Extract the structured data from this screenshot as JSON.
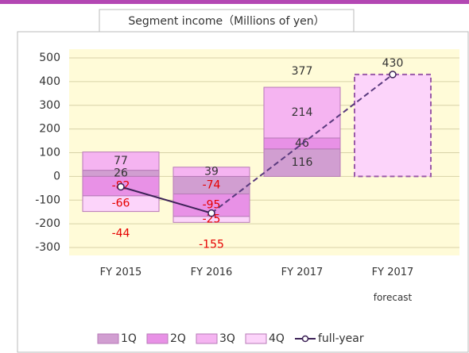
{
  "chart_data": {
    "type": "stacked-bar-line",
    "title": "Segment income（Millions of yen）",
    "categories": [
      "FY 2015",
      "FY 2016",
      "FY 2017",
      "FY 2017\nforecast"
    ],
    "series": [
      {
        "name": "1Q",
        "color": "#d19ed1",
        "values": [
          26,
          -74,
          116,
          null
        ]
      },
      {
        "name": "2Q",
        "color": "#e891e6",
        "values": [
          -82,
          -95,
          46,
          null
        ]
      },
      {
        "name": "3Q",
        "color": "#f5b4f1",
        "values": [
          77,
          39,
          214,
          null
        ]
      },
      {
        "name": "4Q",
        "color": "#fcd4fa",
        "values": [
          -66,
          -25,
          null,
          null
        ]
      },
      {
        "name": "full-year",
        "color": "#3d2257",
        "type": "line",
        "values": [
          -44,
          -155,
          null,
          430
        ]
      }
    ],
    "totals": [
      null,
      null,
      377,
      null
    ],
    "ylim": [
      -300,
      500
    ],
    "yticks": [
      -300,
      -200,
      -100,
      0,
      100,
      200,
      300,
      400,
      500
    ],
    "grid": true,
    "legend": "bottom"
  }
}
